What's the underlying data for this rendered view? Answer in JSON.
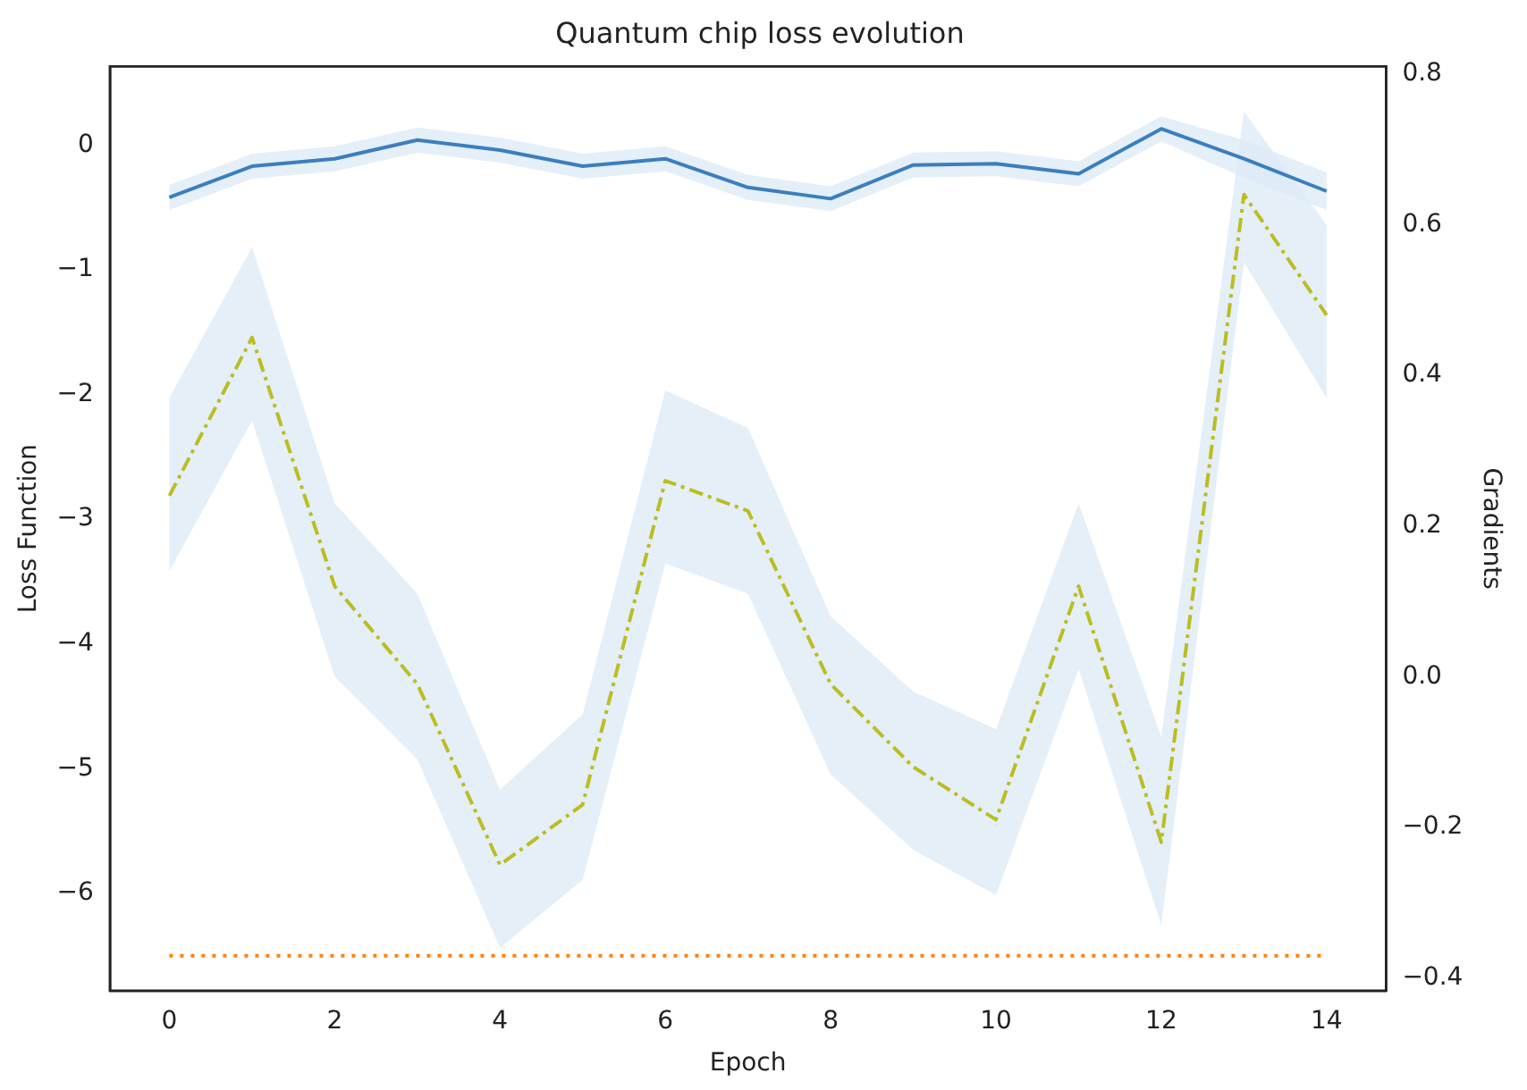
{
  "chart_data": {
    "type": "line",
    "title": "Quantum chip loss evolution",
    "xlabel": "Epoch",
    "ylabel": "Loss Function",
    "y2label": "Gradients",
    "x": [
      0,
      1,
      2,
      3,
      4,
      5,
      6,
      7,
      8,
      9,
      10,
      11,
      12,
      13,
      14
    ],
    "xlim": [
      -0.72,
      14.72
    ],
    "xticks": [
      0,
      2,
      4,
      6,
      8,
      10,
      12,
      14
    ],
    "ylim": [
      -6.78,
      0.63
    ],
    "yticks": [
      -6,
      -5,
      -4,
      -3,
      -2,
      -1,
      0
    ],
    "y2lim": [
      -0.417,
      0.81
    ],
    "y2ticks": [
      {
        "value": -0.4,
        "label": "−0.4"
      },
      {
        "value": -0.2,
        "label": "−0.2"
      },
      {
        "value": 0,
        "label": "0.0"
      },
      {
        "value": 0.2,
        "label": "0.2"
      },
      {
        "value": 0.4,
        "label": "0.4"
      },
      {
        "value": 0.6,
        "label": "0.6"
      },
      {
        "value": 0.8,
        "label": "0.8"
      }
    ],
    "grid": false,
    "legend": false,
    "marker": "none",
    "series": [
      {
        "color": "#3a7fbf",
        "line_style": "solid",
        "values": [
          -0.42,
          -0.17,
          -0.11,
          0.04,
          -0.04,
          -0.17,
          -0.11,
          -0.34,
          -0.43,
          -0.16,
          -0.15,
          -0.23,
          0.13,
          -0.11,
          -0.37
        ],
        "upper": [
          -0.32,
          -0.07,
          -0.01,
          0.14,
          0.06,
          -0.07,
          -0.01,
          -0.24,
          -0.33,
          -0.06,
          -0.05,
          -0.13,
          0.23,
          0.04,
          -0.22
        ],
        "lower": [
          -0.52,
          -0.27,
          -0.21,
          -0.06,
          -0.14,
          -0.27,
          -0.21,
          -0.44,
          -0.53,
          -0.26,
          -0.25,
          -0.33,
          0.03,
          -0.26,
          -0.52
        ]
      },
      {
        "color": "#bcbd22",
        "line_style": "dashed",
        "axis": "y2",
        "values": [
          0.24,
          0.45,
          0.12,
          -0.01,
          -0.25,
          -0.17,
          0.26,
          0.22,
          -0.01,
          -0.12,
          -0.19,
          0.12,
          -0.22,
          0.64,
          0.48
        ],
        "upper": [
          0.37,
          0.57,
          0.23,
          0.11,
          -0.15,
          -0.05,
          0.38,
          0.33,
          0.08,
          -0.02,
          -0.07,
          0.23,
          -0.08,
          0.75,
          0.6
        ],
        "lower": [
          0.14,
          0.34,
          0.0,
          -0.11,
          -0.36,
          -0.27,
          0.15,
          0.11,
          -0.13,
          -0.23,
          -0.29,
          0.01,
          -0.33,
          0.55,
          0.37
        ]
      },
      {
        "color": "#ff7f0e",
        "line_style": "dotted",
        "x": [
          0,
          14
        ],
        "values": [
          -6.5,
          -6.5
        ]
      }
    ]
  }
}
